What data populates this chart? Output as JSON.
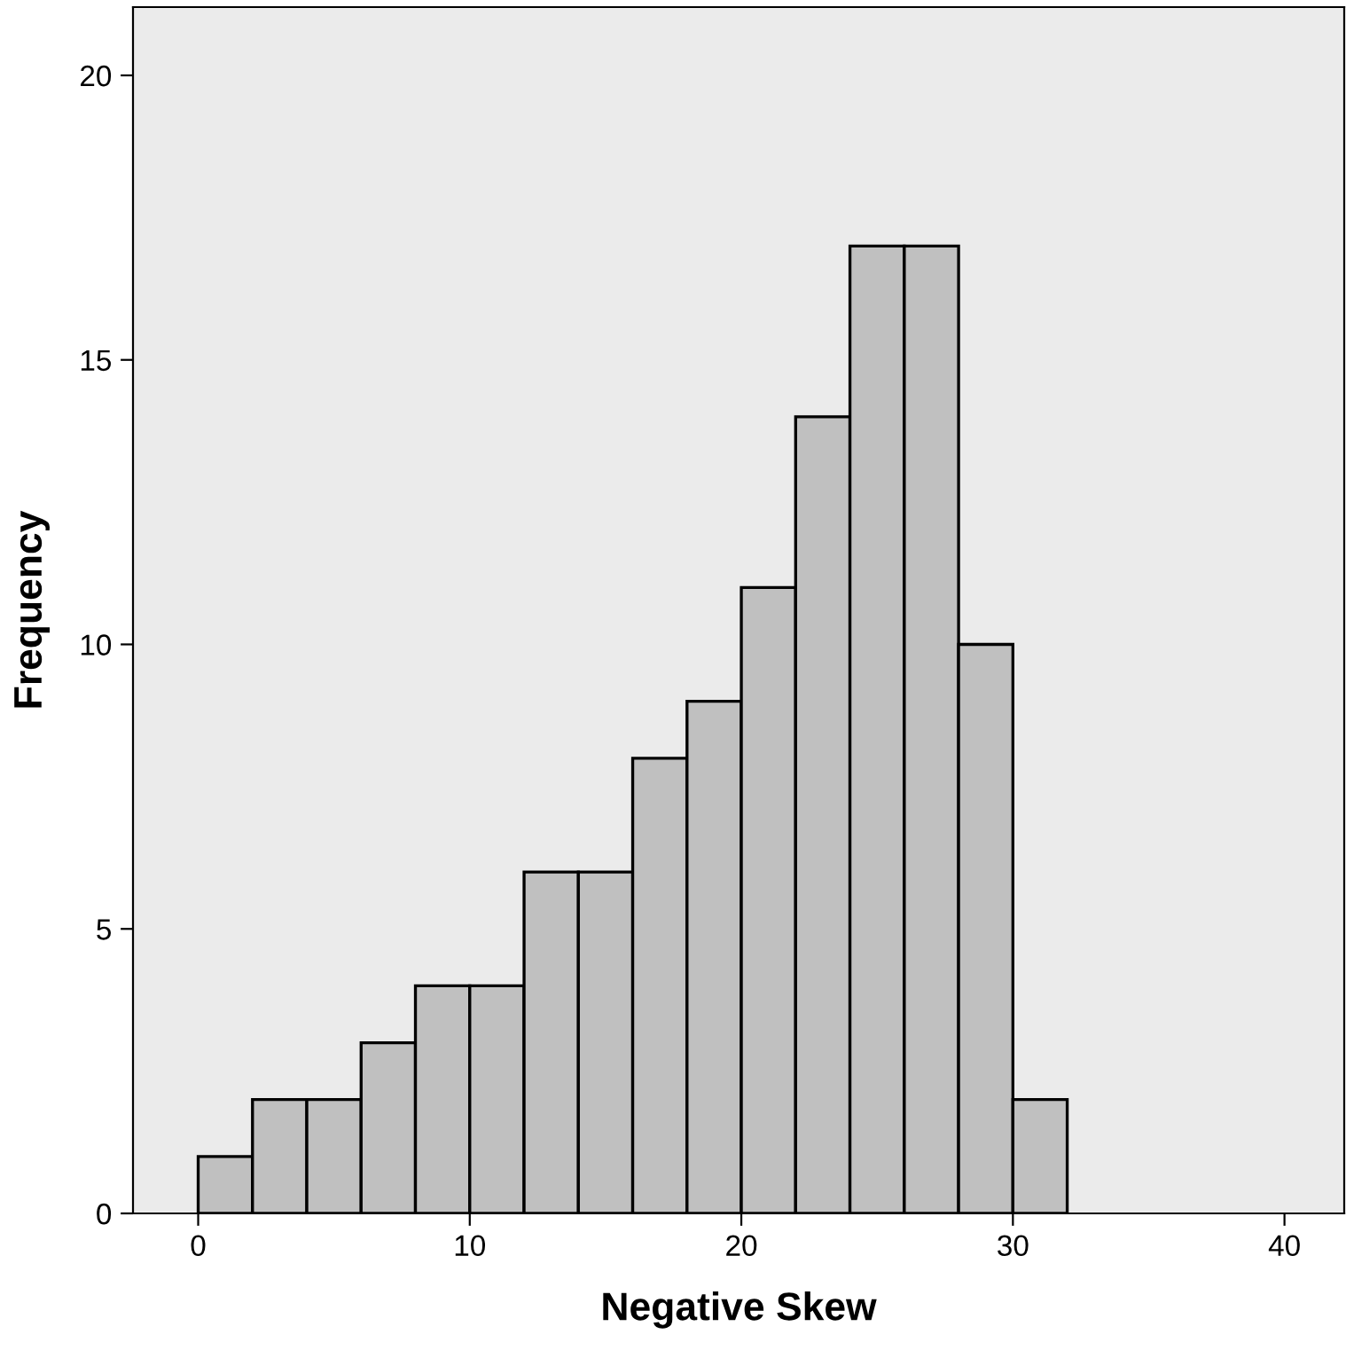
{
  "chart_data": {
    "type": "histogram",
    "xlabel": "Negative Skew",
    "ylabel": "Frequency",
    "bins": [
      0,
      2,
      4,
      6,
      8,
      10,
      12,
      14,
      16,
      18,
      20,
      22,
      24,
      26,
      28,
      30,
      32
    ],
    "values": [
      1,
      2,
      2,
      3,
      4,
      4,
      6,
      6,
      8,
      9,
      11,
      14,
      17,
      17,
      10,
      2
    ],
    "color": "#c0c0c0",
    "xlim": [
      -2.4,
      42.2
    ],
    "xticks": [
      0,
      10,
      20,
      30,
      40
    ],
    "ylim": [
      0,
      21.2
    ],
    "yticks": [
      0,
      5,
      10,
      15,
      20
    ],
    "grid": false,
    "legend": false
  }
}
